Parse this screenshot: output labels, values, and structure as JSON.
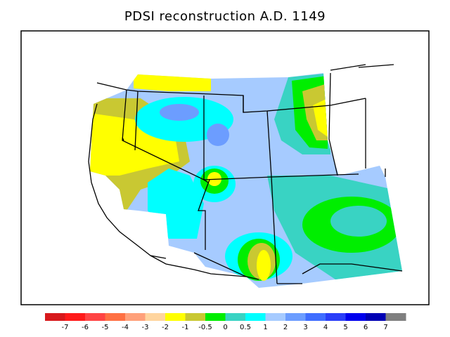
{
  "title": "PDSI reconstruction A.D. 1149",
  "legend": {
    "colors": [
      "#d7191c",
      "#ff1a1a",
      "#ff4444",
      "#ff7043",
      "#ffa07a",
      "#ffd59e",
      "#ffff00",
      "#c9c832",
      "#00ee00",
      "#39d3c3",
      "#00ffff",
      "#a6cbff",
      "#6c9dff",
      "#3f6dff",
      "#2a3ef8",
      "#0000ee",
      "#0000b4",
      "#7f7f7f"
    ],
    "labels": [
      "-7",
      "-6",
      "-5",
      "-4",
      "-3",
      "-2",
      "-1",
      "-0.5",
      "0",
      "0.5",
      "1",
      "2",
      "3",
      "4",
      "5",
      "6",
      "7"
    ]
  }
}
